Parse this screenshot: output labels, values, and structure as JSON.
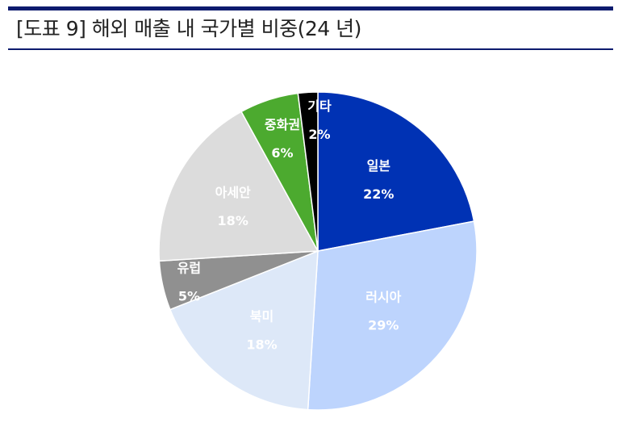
{
  "header": {
    "title": "[도표 9] 해외 매출 내 국가별 비중(24 년)",
    "rule_color": "#0d1b6e"
  },
  "chart_data": {
    "type": "pie",
    "title": "[도표 9] 해외 매출 내 국가별 비중(24 년)",
    "unit": "%",
    "start": "12 o'clock",
    "direction": "clockwise",
    "slices": [
      {
        "label": "일본",
        "value": 22,
        "value_label": "22%",
        "color": "#0032b4",
        "text_color": "#ffffff"
      },
      {
        "label": "러시아",
        "value": 29,
        "value_label": "29%",
        "color": "#bdd4fd",
        "text_color": "#ffffff"
      },
      {
        "label": "북미",
        "value": 18,
        "value_label": "18%",
        "color": "#dde8f8",
        "text_color": "#ffffff"
      },
      {
        "label": "유럽",
        "value": 5,
        "value_label": "5%",
        "color": "#909090",
        "text_color": "#ffffff"
      },
      {
        "label": "아세안",
        "value": 18,
        "value_label": "18%",
        "color": "#dcdcdc",
        "text_color": "#ffffff"
      },
      {
        "label": "중화권",
        "value": 6,
        "value_label": "6%",
        "color": "#4caa2f",
        "text_color": "#ffffff"
      },
      {
        "label": "기타",
        "value": 2,
        "value_label": "2%",
        "color": "#000000",
        "text_color": "#ffffff"
      }
    ]
  }
}
